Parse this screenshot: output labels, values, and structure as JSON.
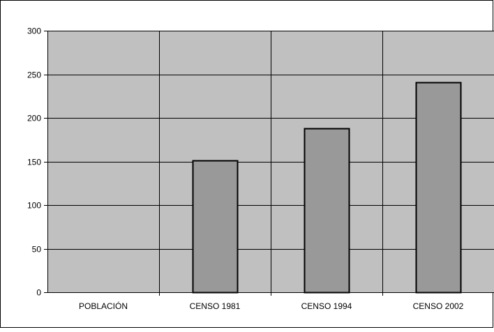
{
  "chart_data": {
    "type": "bar",
    "categories": [
      "POBLACIÓN",
      "CENSO 1981",
      "CENSO 1994",
      "CENSO 2002"
    ],
    "values": [
      null,
      151,
      188,
      241
    ],
    "ylim": [
      0,
      300
    ],
    "yticks": [
      0,
      50,
      100,
      150,
      200,
      250,
      300
    ],
    "grid": true,
    "legend": "none",
    "colors": {
      "plot_background": "#c0c0c0",
      "bar_fill": "#999999",
      "bar_stroke": "#000000",
      "gridline": "#000000",
      "frame": "#000000"
    }
  }
}
